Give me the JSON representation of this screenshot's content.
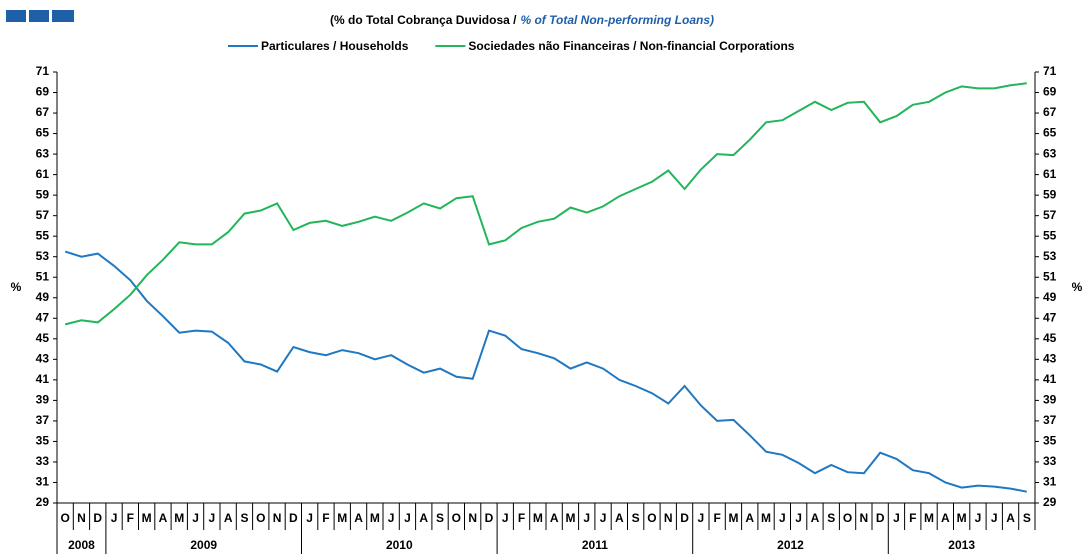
{
  "chart_data": {
    "type": "line",
    "subtitle": "(% do Total Cobrança Duvidosa  /",
    "subtitle_en": "% of Total Non-performing Loans)",
    "ylabel": "%",
    "y2label": "%",
    "categories": [
      "O",
      "N",
      "D",
      "J",
      "F",
      "M",
      "A",
      "M",
      "J",
      "J",
      "A",
      "S",
      "O",
      "N",
      "D",
      "J",
      "F",
      "M",
      "A",
      "M",
      "J",
      "J",
      "A",
      "S",
      "O",
      "N",
      "D",
      "J",
      "F",
      "M",
      "A",
      "M",
      "J",
      "J",
      "A",
      "S",
      "O",
      "N",
      "D",
      "J",
      "F",
      "M",
      "A",
      "M",
      "J",
      "J",
      "A",
      "S",
      "O",
      "N",
      "D",
      "J",
      "F",
      "M",
      "A",
      "M",
      "J",
      "J",
      "A",
      "S"
    ],
    "year_groups": [
      {
        "label": "2008",
        "months": 3
      },
      {
        "label": "2009",
        "months": 12
      },
      {
        "label": "2010",
        "months": 12
      },
      {
        "label": "2011",
        "months": 12
      },
      {
        "label": "2012",
        "months": 12
      },
      {
        "label": "2013",
        "months": 9
      }
    ],
    "series": [
      {
        "name": "Particulares / Households",
        "color": "#1f78c1",
        "values": [
          53.5,
          53.0,
          53.3,
          52.1,
          50.7,
          48.7,
          47.2,
          45.6,
          45.8,
          45.7,
          44.6,
          42.8,
          42.5,
          41.8,
          44.2,
          43.7,
          43.4,
          43.9,
          43.6,
          43.0,
          43.4,
          42.5,
          41.7,
          42.1,
          41.3,
          41.1,
          45.8,
          45.3,
          44.0,
          43.6,
          43.1,
          42.1,
          42.7,
          42.1,
          41.0,
          40.4,
          39.7,
          38.7,
          40.4,
          38.5,
          37.0,
          37.1,
          35.6,
          34.0,
          33.7,
          32.9,
          31.9,
          32.7,
          32.0,
          31.9,
          33.9,
          33.3,
          32.2,
          31.9,
          31.0,
          30.5,
          30.7,
          30.6,
          30.4,
          30.1
        ]
      },
      {
        "name": "Sociedades não Financeiras / Non-financial Corporations",
        "color": "#22b55a",
        "values": [
          46.4,
          46.8,
          46.6,
          47.9,
          49.3,
          51.2,
          52.7,
          54.4,
          54.2,
          54.2,
          55.4,
          57.2,
          57.5,
          58.2,
          55.6,
          56.3,
          56.5,
          56.0,
          56.4,
          56.9,
          56.5,
          57.3,
          58.2,
          57.7,
          58.7,
          58.9,
          54.2,
          54.6,
          55.8,
          56.4,
          56.7,
          57.8,
          57.3,
          57.9,
          58.9,
          59.6,
          60.3,
          61.4,
          59.6,
          61.5,
          63.0,
          62.9,
          64.4,
          66.1,
          66.3,
          67.2,
          68.1,
          67.3,
          68.0,
          68.1,
          66.1,
          66.7,
          67.8,
          68.1,
          69.0,
          69.6,
          69.4,
          69.4,
          69.7,
          69.9
        ]
      }
    ],
    "ylim": [
      29,
      71
    ],
    "yticks": [
      29,
      31,
      33,
      35,
      37,
      39,
      41,
      43,
      45,
      47,
      49,
      51,
      53,
      55,
      57,
      59,
      61,
      63,
      65,
      67,
      69,
      71
    ],
    "y2lim": [
      29,
      71
    ],
    "y2ticks": [
      29,
      31,
      33,
      35,
      37,
      39,
      41,
      43,
      45,
      47,
      49,
      51,
      53,
      55,
      57,
      59,
      61,
      63,
      65,
      67,
      69,
      71
    ],
    "legend": "top"
  }
}
